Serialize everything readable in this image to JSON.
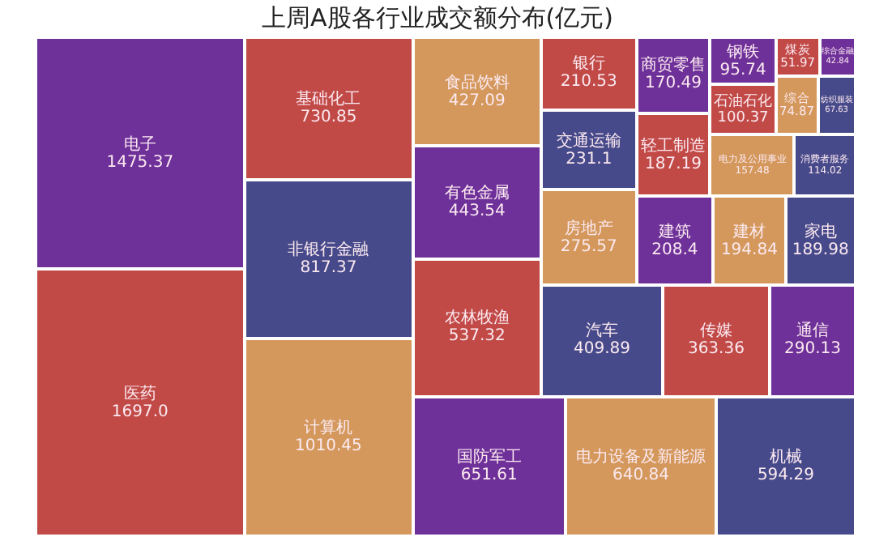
{
  "chart_data": {
    "type": "other",
    "title": "上周A股各行业成交额分布(亿元)",
    "categories": [
      "医药",
      "电子",
      "计算机",
      "非银行金融",
      "基础化工",
      "国防军工",
      "电力设备及新能源",
      "机械",
      "农林牧渔",
      "有色金属",
      "食品饮料",
      "汽车",
      "传媒",
      "通信",
      "房地产",
      "交通运输",
      "银行",
      "建筑",
      "建材",
      "家电",
      "轻工制造",
      "商贸零售",
      "电力及公用事业",
      "消费者服务",
      "石油石化",
      "钢铁",
      "综合",
      "纺织服装",
      "煤炭",
      "综合金融"
    ],
    "values": [
      1697.0,
      1475.37,
      1010.45,
      817.37,
      730.85,
      651.61,
      640.84,
      594.29,
      537.32,
      443.54,
      427.09,
      409.89,
      363.36,
      290.13,
      275.57,
      231.1,
      210.53,
      208.4,
      194.84,
      189.98,
      187.19,
      170.49,
      157.48,
      114.02,
      100.37,
      95.74,
      74.87,
      67.63,
      51.97,
      42.84
    ],
    "value_labels": [
      "1697.0",
      "1475.37",
      "1010.45",
      "817.37",
      "730.85",
      "651.61",
      "640.84",
      "594.29",
      "537.32",
      "443.54",
      "427.09",
      "409.89",
      "363.36",
      "290.13",
      "275.57",
      "231.1",
      "210.53",
      "208.4",
      "194.84",
      "189.98",
      "187.19",
      "170.49",
      "157.48",
      "114.02",
      "100.37",
      "95.74",
      "74.87",
      "67.63",
      "51.97",
      "42.84"
    ],
    "colors": [
      "#c14a47",
      "#6e3099",
      "#d4985c",
      "#474a8a",
      "#c14a47",
      "#6e3099",
      "#d4985c",
      "#474a8a",
      "#c14a47",
      "#6e3099",
      "#d4985c",
      "#474a8a",
      "#c14a47",
      "#6e3099",
      "#d4985c",
      "#474a8a",
      "#c14a47",
      "#6e3099",
      "#d4985c",
      "#474a8a",
      "#c14a47",
      "#6e3099",
      "#d4985c",
      "#474a8a",
      "#c14a47",
      "#6e3099",
      "#d4985c",
      "#474a8a",
      "#c14a47",
      "#6e3099"
    ]
  }
}
